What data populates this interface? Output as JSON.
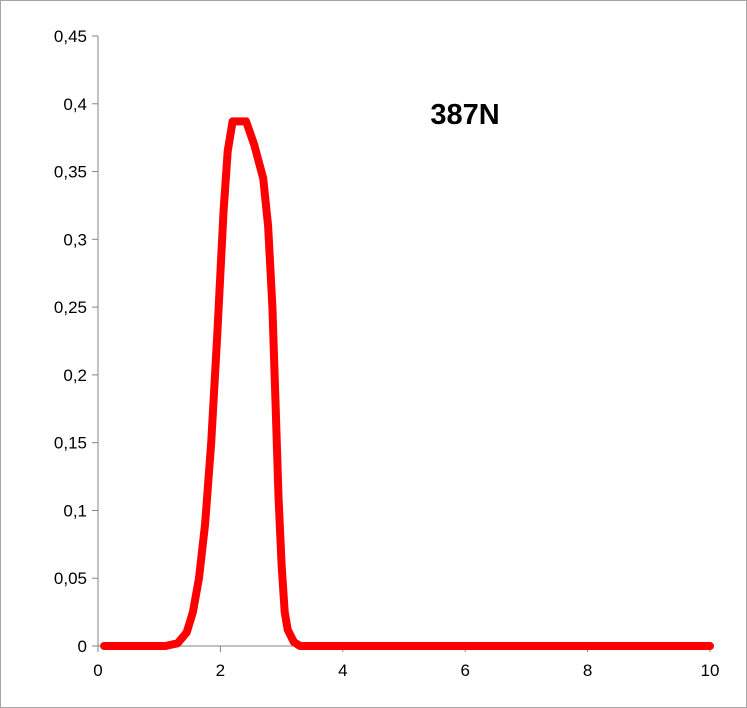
{
  "chart_data": {
    "type": "line",
    "title": "",
    "xlabel": "",
    "ylabel": "",
    "annotation": "387N",
    "xlim": [
      0,
      10
    ],
    "ylim": [
      0,
      0.45
    ],
    "x_ticks": [
      0,
      2,
      4,
      6,
      8,
      10
    ],
    "x_tick_labels": [
      "0",
      "2",
      "4",
      "6",
      "8",
      "10"
    ],
    "y_ticks": [
      0,
      0.05,
      0.1,
      0.15,
      0.2,
      0.25,
      0.3,
      0.35,
      0.4,
      0.45
    ],
    "y_tick_labels": [
      "0",
      "0,05",
      "0,1",
      "0,15",
      "0,2",
      "0,25",
      "0,3",
      "0,35",
      "0,4",
      "0,45"
    ],
    "grid": false,
    "legend": "none",
    "series": [
      {
        "color": "#ff0000",
        "x": [
          0.1,
          0.4,
          0.8,
          1.1,
          1.3,
          1.45,
          1.55,
          1.65,
          1.75,
          1.85,
          1.95,
          2.05,
          2.12,
          2.2,
          2.3,
          2.42,
          2.55,
          2.7,
          2.78,
          2.85,
          2.9,
          2.95,
          3.0,
          3.05,
          3.1,
          3.2,
          3.3,
          3.5,
          4.0,
          5.0,
          6.0,
          7.0,
          8.0,
          9.0,
          10.0
        ],
        "y": [
          0,
          0,
          0,
          0,
          0.002,
          0.01,
          0.025,
          0.05,
          0.09,
          0.15,
          0.23,
          0.32,
          0.365,
          0.387,
          0.387,
          0.387,
          0.37,
          0.345,
          0.31,
          0.25,
          0.18,
          0.11,
          0.06,
          0.025,
          0.012,
          0.003,
          0,
          0,
          0,
          0,
          0,
          0,
          0,
          0,
          0
        ]
      }
    ]
  }
}
